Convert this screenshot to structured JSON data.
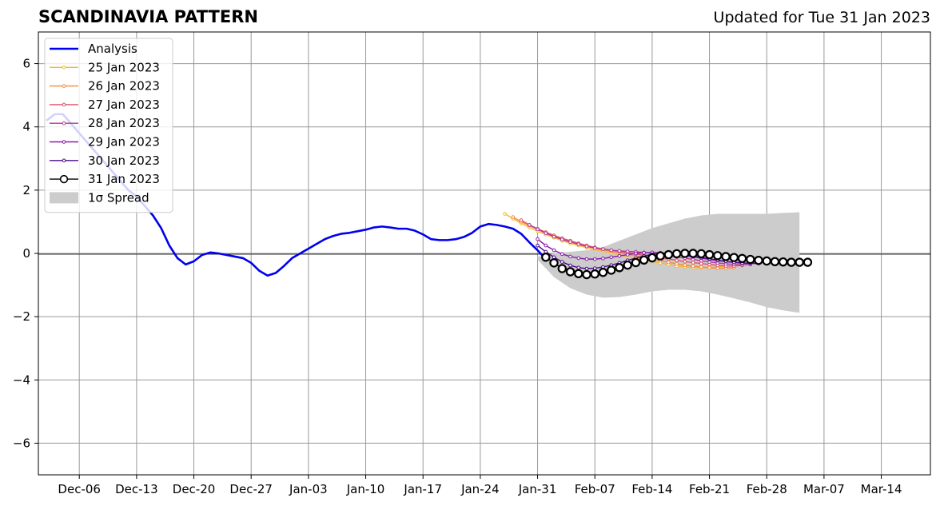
{
  "header": {
    "title": "SCANDINAVIA PATTERN",
    "updated": "Updated for Tue 31 Jan 2023"
  },
  "colors": {
    "analysis": "#0000ee",
    "spread": "#cccccc",
    "grid": "#999999",
    "forecast_current": "#000000"
  },
  "chart_data": {
    "type": "line",
    "title": "SCANDINAVIA PATTERN",
    "xlabel": "",
    "ylabel": "",
    "xlim": [
      "2023-12-01",
      "2024-03-20"
    ],
    "ylim": [
      -7,
      7
    ],
    "grid": true,
    "legend_position": "top-left",
    "x_ticks": [
      "Dec-06",
      "Dec-13",
      "Dec-20",
      "Dec-27",
      "Jan-03",
      "Jan-10",
      "Jan-17",
      "Jan-24",
      "Jan-31",
      "Feb-07",
      "Feb-14",
      "Feb-21",
      "Feb-28",
      "Mar-07",
      "Mar-14"
    ],
    "y_ticks": [
      6,
      4,
      2,
      0,
      -2,
      -4,
      -6
    ],
    "y_tick_labels": [
      "6",
      "4",
      "2",
      "0",
      "−2",
      "−4",
      "−6"
    ],
    "analysis": {
      "name": "Analysis",
      "color": "#0000ee",
      "points": [
        [
          "2022-12-02",
          4.2
        ],
        [
          "2022-12-03",
          4.4
        ],
        [
          "2022-12-04",
          4.4
        ],
        [
          "2022-12-05",
          4.1
        ],
        [
          "2022-12-06",
          3.8
        ],
        [
          "2022-12-07",
          3.5
        ],
        [
          "2022-12-08",
          3.2
        ],
        [
          "2022-12-09",
          2.9
        ],
        [
          "2022-12-10",
          2.6
        ],
        [
          "2022-12-11",
          2.3
        ],
        [
          "2022-12-12",
          2.0
        ],
        [
          "2022-12-13",
          1.8
        ],
        [
          "2022-12-14",
          1.5
        ],
        [
          "2022-12-15",
          1.2
        ],
        [
          "2022-12-16",
          0.8
        ],
        [
          "2022-12-17",
          0.25
        ],
        [
          "2022-12-18",
          -0.15
        ],
        [
          "2022-12-19",
          -0.35
        ],
        [
          "2022-12-20",
          -0.25
        ],
        [
          "2022-12-21",
          -0.05
        ],
        [
          "2022-12-22",
          0.03
        ],
        [
          "2022-12-23",
          0.0
        ],
        [
          "2022-12-24",
          -0.05
        ],
        [
          "2022-12-25",
          -0.1
        ],
        [
          "2022-12-26",
          -0.15
        ],
        [
          "2022-12-27",
          -0.3
        ],
        [
          "2022-12-28",
          -0.55
        ],
        [
          "2022-12-29",
          -0.7
        ],
        [
          "2022-12-30",
          -0.62
        ],
        [
          "2022-12-31",
          -0.4
        ],
        [
          "2023-01-01",
          -0.15
        ],
        [
          "2023-01-02",
          0.0
        ],
        [
          "2023-01-03",
          0.15
        ],
        [
          "2023-01-04",
          0.3
        ],
        [
          "2023-01-05",
          0.45
        ],
        [
          "2023-01-06",
          0.55
        ],
        [
          "2023-01-07",
          0.62
        ],
        [
          "2023-01-08",
          0.65
        ],
        [
          "2023-01-09",
          0.7
        ],
        [
          "2023-01-10",
          0.75
        ],
        [
          "2023-01-11",
          0.82
        ],
        [
          "2023-01-12",
          0.85
        ],
        [
          "2023-01-13",
          0.82
        ],
        [
          "2023-01-14",
          0.78
        ],
        [
          "2023-01-15",
          0.78
        ],
        [
          "2023-01-16",
          0.72
        ],
        [
          "2023-01-17",
          0.6
        ],
        [
          "2023-01-18",
          0.45
        ],
        [
          "2023-01-19",
          0.42
        ],
        [
          "2023-01-20",
          0.42
        ],
        [
          "2023-01-21",
          0.45
        ],
        [
          "2023-01-22",
          0.52
        ],
        [
          "2023-01-23",
          0.65
        ],
        [
          "2023-01-24",
          0.85
        ],
        [
          "2023-01-25",
          0.93
        ],
        [
          "2023-01-26",
          0.9
        ],
        [
          "2023-01-27",
          0.85
        ],
        [
          "2023-01-28",
          0.78
        ],
        [
          "2023-01-29",
          0.62
        ],
        [
          "2023-01-30",
          0.35
        ],
        [
          "2023-01-31",
          0.1
        ],
        [
          "2023-02-01",
          -0.18
        ]
      ]
    },
    "spread": {
      "name": "1σ Spread",
      "color": "#cccccc",
      "x": [
        "2023-01-31",
        "2023-02-02",
        "2023-02-04",
        "2023-02-06",
        "2023-02-08",
        "2023-02-10",
        "2023-02-12",
        "2023-02-14",
        "2023-02-16",
        "2023-02-18",
        "2023-02-20",
        "2023-02-22",
        "2023-02-24",
        "2023-02-26",
        "2023-02-28",
        "2023-03-02",
        "2023-03-04"
      ],
      "upper": [
        -0.1,
        0.0,
        0.05,
        0.1,
        0.2,
        0.4,
        0.6,
        0.8,
        0.95,
        1.1,
        1.2,
        1.25,
        1.25,
        1.25,
        1.25,
        1.28,
        1.3
      ],
      "lower": [
        -0.2,
        -0.75,
        -1.1,
        -1.3,
        -1.4,
        -1.38,
        -1.3,
        -1.2,
        -1.15,
        -1.15,
        -1.2,
        -1.3,
        -1.42,
        -1.55,
        -1.7,
        -1.8,
        -1.88
      ]
    },
    "series": [
      {
        "name": "25 Jan 2023",
        "color": "#f5b82e",
        "start": "2023-01-27",
        "values": [
          1.25,
          1.1,
          0.95,
          0.82,
          0.7,
          0.6,
          0.5,
          0.4,
          0.32,
          0.25,
          0.18,
          0.12,
          0.07,
          0.02,
          -0.05,
          -0.1,
          -0.15,
          -0.2,
          -0.25,
          -0.3,
          -0.35,
          -0.4,
          -0.42,
          -0.45,
          -0.45,
          -0.45,
          -0.43,
          -0.4
        ]
      },
      {
        "name": "26 Jan 2023",
        "color": "#f38a3c",
        "start": "2023-01-28",
        "values": [
          1.15,
          1.0,
          0.88,
          0.76,
          0.66,
          0.55,
          0.46,
          0.38,
          0.3,
          0.23,
          0.17,
          0.12,
          0.07,
          0.02,
          -0.03,
          -0.08,
          -0.13,
          -0.18,
          -0.23,
          -0.28,
          -0.33,
          -0.37,
          -0.4,
          -0.43,
          -0.45,
          -0.47,
          -0.47,
          -0.45
        ]
      },
      {
        "name": "27 Jan 2023",
        "color": "#e05263",
        "start": "2023-01-29",
        "values": [
          1.05,
          0.9,
          0.78,
          0.67,
          0.57,
          0.48,
          0.4,
          0.32,
          0.25,
          0.19,
          0.14,
          0.1,
          0.06,
          0.02,
          -0.02,
          -0.06,
          -0.1,
          -0.14,
          -0.18,
          -0.22,
          -0.26,
          -0.29,
          -0.32,
          -0.35,
          -0.38,
          -0.4,
          -0.4,
          -0.38
        ]
      },
      {
        "name": "28 Jan 2023",
        "color": "#b03a9a",
        "start": "2023-01-30",
        "values": [
          0.9,
          0.76,
          0.64,
          0.53,
          0.44,
          0.36,
          0.29,
          0.22,
          0.17,
          0.13,
          0.1,
          0.08,
          0.06,
          0.05,
          0.03,
          0.0,
          -0.03,
          -0.07,
          -0.11,
          -0.15,
          -0.19,
          -0.23,
          -0.27,
          -0.3,
          -0.33,
          -0.35,
          -0.36,
          -0.35
        ]
      },
      {
        "name": "29 Jan 2023",
        "color": "#8a1aa8",
        "start": "2023-01-31",
        "values": [
          0.45,
          0.25,
          0.1,
          -0.02,
          -0.1,
          -0.15,
          -0.18,
          -0.18,
          -0.16,
          -0.12,
          -0.08,
          -0.04,
          0.0,
          0.02,
          0.03,
          0.02,
          0.0,
          -0.03,
          -0.07,
          -0.11,
          -0.15,
          -0.19,
          -0.23,
          -0.26,
          -0.29,
          -0.31,
          -0.32,
          -0.32
        ]
      },
      {
        "name": "30 Jan 2023",
        "color": "#4b0a8c",
        "start": "2023-01-31",
        "values": [
          0.25,
          0.05,
          -0.12,
          -0.27,
          -0.38,
          -0.45,
          -0.48,
          -0.47,
          -0.43,
          -0.37,
          -0.3,
          -0.22,
          -0.15,
          -0.08,
          -0.03,
          0.0,
          0.0,
          -0.02,
          -0.05,
          -0.09,
          -0.13,
          -0.17,
          -0.21,
          -0.25,
          -0.28,
          -0.3,
          -0.31,
          -0.3
        ]
      },
      {
        "name": "31 Jan 2023",
        "color": "#000000",
        "marker": "open-circle",
        "start": "2023-02-01",
        "values": [
          -0.12,
          -0.3,
          -0.48,
          -0.58,
          -0.64,
          -0.67,
          -0.65,
          -0.6,
          -0.53,
          -0.45,
          -0.37,
          -0.29,
          -0.21,
          -0.14,
          -0.08,
          -0.04,
          -0.01,
          0.0,
          0.0,
          -0.01,
          -0.04,
          -0.07,
          -0.1,
          -0.13,
          -0.16,
          -0.19,
          -0.22,
          -0.24,
          -0.26,
          -0.27,
          -0.28,
          -0.28,
          -0.28
        ]
      }
    ]
  }
}
